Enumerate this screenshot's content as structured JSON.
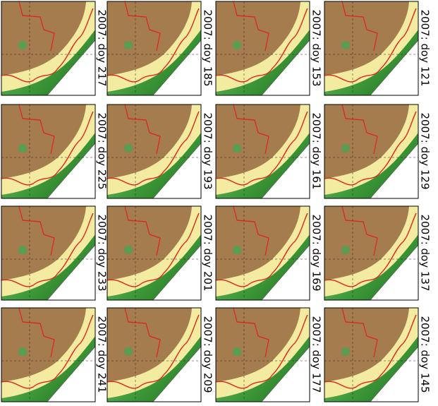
{
  "panels": [
    {
      "label": "2007: doy 121"
    },
    {
      "label": "2007: doy 129"
    },
    {
      "label": "2007: doy 137"
    },
    {
      "label": "2007: doy 145"
    },
    {
      "label": "2007: doy 153"
    },
    {
      "label": "2007: doy 161"
    },
    {
      "label": "2007: doy 169"
    },
    {
      "label": "2007: doy 177"
    },
    {
      "label": "2007: doy 185"
    },
    {
      "label": "2007: doy 193"
    },
    {
      "label": "2007: doy 201"
    },
    {
      "label": "2007: doy 209"
    },
    {
      "label": "2007: doy 217"
    },
    {
      "label": "2007: doy 225"
    },
    {
      "label": "2007: doy 233"
    },
    {
      "label": "2007: doy 241"
    }
  ]
}
